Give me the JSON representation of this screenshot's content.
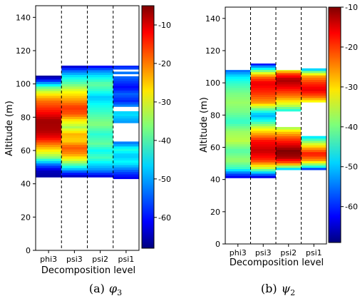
{
  "chart_data": [
    {
      "type": "heatmap",
      "caption_prefix": "(a)",
      "caption_symbol": "φ",
      "caption_subscript": "3",
      "xlabel": "Decomposition level",
      "ylabel": "Altitude (m)",
      "categories": [
        "phi3",
        "psi3",
        "psi2",
        "psi1"
      ],
      "ylim": [
        0,
        147
      ],
      "yticks": [
        "0",
        "20",
        "40",
        "60",
        "80",
        "100",
        "120",
        "140"
      ],
      "colorbar": {
        "range": [
          -68,
          -5
        ],
        "ticks": [
          "-10",
          "-20",
          "-30",
          "-40",
          "-50",
          "-60"
        ]
      },
      "columns": [
        {
          "name": "phi3",
          "top": 105,
          "bottom": 44,
          "profile": [
            [
              44,
              -66
            ],
            [
              48,
              -64
            ],
            [
              52,
              -52
            ],
            [
              56,
              -36
            ],
            [
              62,
              -24
            ],
            [
              68,
              -12
            ],
            [
              72,
              -8
            ],
            [
              78,
              -7
            ],
            [
              82,
              -12
            ],
            [
              86,
              -16
            ],
            [
              90,
              -20
            ],
            [
              94,
              -28
            ],
            [
              98,
              -38
            ],
            [
              101,
              -52
            ],
            [
              103,
              -62
            ],
            [
              105,
              -66
            ]
          ]
        },
        {
          "name": "psi3",
          "top": 111,
          "bottom": 44,
          "profile": [
            [
              44,
              -66
            ],
            [
              47,
              -56
            ],
            [
              50,
              -44
            ],
            [
              54,
              -32
            ],
            [
              58,
              -22
            ],
            [
              62,
              -18
            ],
            [
              66,
              -26
            ],
            [
              70,
              -24
            ],
            [
              74,
              -34
            ],
            [
              78,
              -28
            ],
            [
              82,
              -18
            ],
            [
              86,
              -16
            ],
            [
              90,
              -22
            ],
            [
              96,
              -30
            ],
            [
              100,
              -38
            ],
            [
              104,
              -44
            ],
            [
              108,
              -54
            ],
            [
              111,
              -64
            ]
          ]
        },
        {
          "name": "psi2",
          "top": 111,
          "bottom": 44,
          "profile": [
            [
              44,
              -64
            ],
            [
              48,
              -52
            ],
            [
              52,
              -46
            ],
            [
              56,
              -40
            ],
            [
              60,
              -44
            ],
            [
              64,
              -38
            ],
            [
              70,
              -42
            ],
            [
              76,
              -36
            ],
            [
              82,
              -40
            ],
            [
              88,
              -44
            ],
            [
              92,
              -48
            ],
            [
              96,
              -42
            ],
            [
              100,
              -38
            ],
            [
              104,
              -44
            ],
            [
              108,
              -52
            ],
            [
              111,
              -62
            ]
          ]
        },
        {
          "name": "psi1",
          "top": 111,
          "bottom": 43,
          "gaps": [
            [
              66,
              76
            ],
            [
              83,
              84.5
            ],
            [
              85.5,
              87
            ],
            [
              104.5,
              106.5
            ],
            [
              108,
              109
            ]
          ],
          "profile": [
            [
              43,
              -62
            ],
            [
              47,
              -56
            ],
            [
              50,
              -50
            ],
            [
              53,
              -44
            ],
            [
              57,
              -48
            ],
            [
              61,
              -42
            ],
            [
              64,
              -52
            ],
            [
              70,
              -54
            ],
            [
              78,
              -50
            ],
            [
              82,
              -46
            ],
            [
              86,
              -50
            ],
            [
              90,
              -58
            ],
            [
              94,
              -54
            ],
            [
              98,
              -60
            ],
            [
              102,
              -56
            ],
            [
              106,
              -52
            ],
            [
              111,
              -58
            ]
          ]
        }
      ]
    },
    {
      "type": "heatmap",
      "caption_prefix": "(b)",
      "caption_symbol": "ψ",
      "caption_subscript": "2",
      "xlabel": "Decomposition level",
      "ylabel": "Altitude (m)",
      "categories": [
        "phi3",
        "psi3",
        "psi2",
        "psi1"
      ],
      "ylim": [
        0,
        147
      ],
      "yticks": [
        "0",
        "20",
        "40",
        "60",
        "80",
        "100",
        "120",
        "140"
      ],
      "colorbar": {
        "range": [
          -69,
          -10
        ],
        "ticks": [
          "-10",
          "-20",
          "-30",
          "-40",
          "-50",
          "-60"
        ]
      },
      "columns": [
        {
          "name": "phi3",
          "top": 108,
          "bottom": 41,
          "profile": [
            [
              41,
              -64
            ],
            [
              44,
              -56
            ],
            [
              47,
              -44
            ],
            [
              52,
              -38
            ],
            [
              58,
              -42
            ],
            [
              64,
              -36
            ],
            [
              70,
              -38
            ],
            [
              76,
              -44
            ],
            [
              82,
              -40
            ],
            [
              88,
              -38
            ],
            [
              94,
              -40
            ],
            [
              100,
              -44
            ],
            [
              104,
              -48
            ],
            [
              108,
              -56
            ]
          ]
        },
        {
          "name": "psi3",
          "top": 112,
          "bottom": 41,
          "profile": [
            [
              41,
              -66
            ],
            [
              44,
              -52
            ],
            [
              47,
              -36
            ],
            [
              52,
              -20
            ],
            [
              58,
              -14
            ],
            [
              64,
              -18
            ],
            [
              68,
              -26
            ],
            [
              72,
              -34
            ],
            [
              76,
              -44
            ],
            [
              80,
              -52
            ],
            [
              84,
              -40
            ],
            [
              88,
              -26
            ],
            [
              94,
              -20
            ],
            [
              100,
              -16
            ],
            [
              104,
              -24
            ],
            [
              108,
              -42
            ],
            [
              112,
              -62
            ]
          ]
        },
        {
          "name": "psi2",
          "top": 108,
          "bottom": 46,
          "gaps": [
            [
              73,
              82
            ]
          ],
          "profile": [
            [
              46,
              -54
            ],
            [
              50,
              -24
            ],
            [
              54,
              -12
            ],
            [
              58,
              -10
            ],
            [
              62,
              -16
            ],
            [
              66,
              -22
            ],
            [
              70,
              -30
            ],
            [
              73,
              -40
            ],
            [
              82,
              -48
            ],
            [
              86,
              -36
            ],
            [
              92,
              -24
            ],
            [
              98,
              -16
            ],
            [
              102,
              -12
            ],
            [
              106,
              -22
            ],
            [
              108,
              -34
            ]
          ]
        },
        {
          "name": "psi1",
          "top": 109,
          "bottom": 46,
          "gaps": [
            [
              67,
              88
            ]
          ],
          "profile": [
            [
              46,
              -64
            ],
            [
              48,
              -46
            ],
            [
              52,
              -26
            ],
            [
              56,
              -18
            ],
            [
              60,
              -28
            ],
            [
              64,
              -40
            ],
            [
              67,
              -50
            ],
            [
              88,
              -34
            ],
            [
              92,
              -22
            ],
            [
              96,
              -16
            ],
            [
              100,
              -20
            ],
            [
              104,
              -26
            ],
            [
              107,
              -40
            ],
            [
              109,
              -54
            ]
          ]
        }
      ]
    }
  ]
}
